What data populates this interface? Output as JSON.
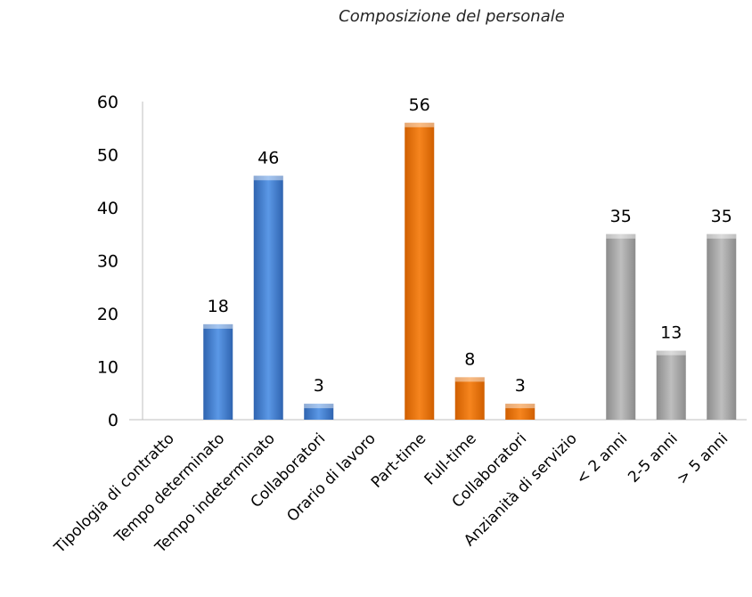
{
  "chart_data": {
    "type": "bar",
    "title": "Composizione del personale",
    "categories": [
      "Tipologia di contratto",
      "Tempo determinato",
      "Tempo indeterminato",
      "Collaboratori",
      "Orario di lavoro",
      "Part-time",
      "Full-time",
      "Collaboratori",
      "Anzianità di servizio",
      "< 2 anni",
      "2-5 anni",
      "> 5 anni"
    ],
    "values": [
      null,
      18,
      46,
      3,
      null,
      56,
      8,
      3,
      null,
      35,
      13,
      35
    ],
    "value_labels": [
      "",
      "18",
      "46",
      "3",
      "",
      "56",
      "8",
      "3",
      "",
      "35",
      "13",
      "35"
    ],
    "bar_colors": [
      "",
      "#4A86D6",
      "#4A86D6",
      "#4A86D6",
      "",
      "#EE7A14",
      "#EE7A14",
      "#EE7A14",
      "",
      "#A9A9A9",
      "#A9A9A9",
      "#A9A9A9"
    ],
    "ylim": [
      0,
      60
    ],
    "yticks": [
      0,
      10,
      20,
      30,
      40,
      50,
      60
    ],
    "xlabel": "",
    "ylabel": "",
    "grid": false,
    "legend": "none"
  }
}
